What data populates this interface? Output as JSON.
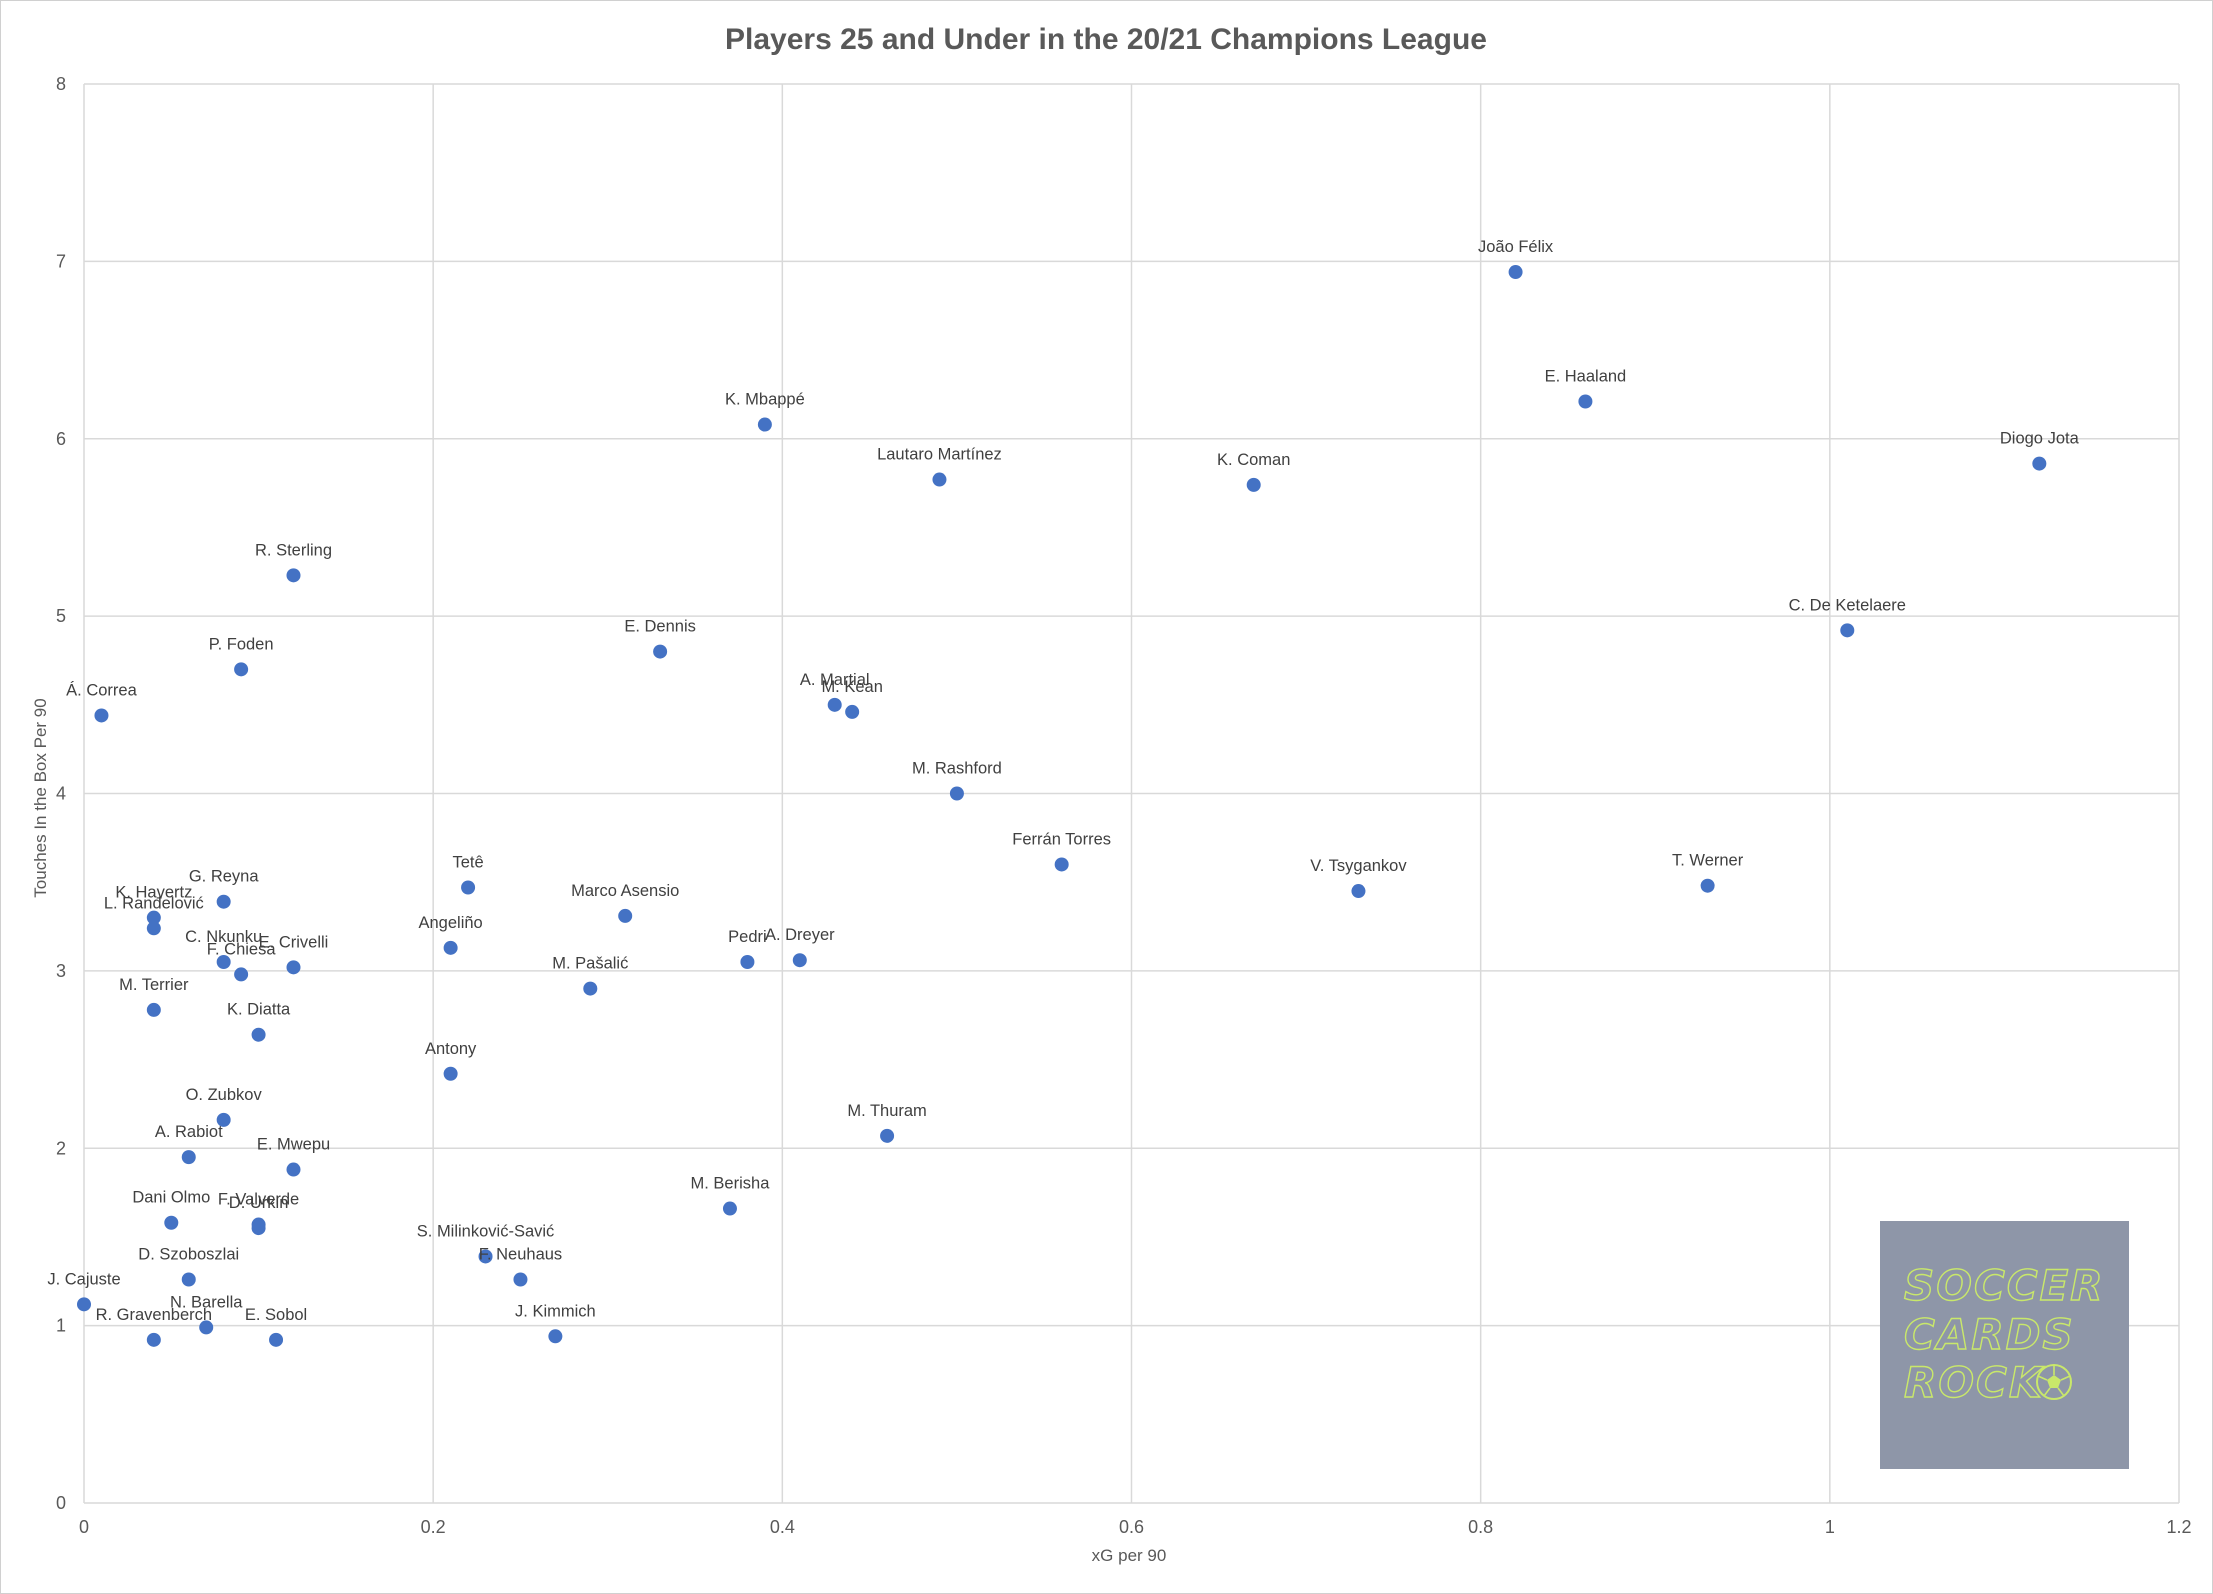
{
  "colors": {
    "marker": "#4472c4",
    "grid": "#d9d9d9",
    "text": "#595959",
    "logo_bg": "#8e96a8",
    "logo_text": "#c9e86a"
  },
  "logo": {
    "lines": [
      "SOCCER",
      "CARDS",
      "ROCK"
    ],
    "icon": "soccer-ball-icon"
  },
  "chart_data": {
    "type": "scatter",
    "title": "Players 25 and Under in the 20/21 Champions League",
    "xlabel": "xG per 90",
    "ylabel": "Touches In the Box Per 90",
    "xlim": [
      0,
      1.2
    ],
    "ylim": [
      0,
      8
    ],
    "xticks": [
      "0",
      "0.2",
      "0.4",
      "0.6",
      "0.8",
      "1",
      "1.2"
    ],
    "yticks": [
      "0",
      "1",
      "2",
      "3",
      "4",
      "5",
      "6",
      "7",
      "8"
    ],
    "grid": true,
    "points": [
      {
        "label": "João Félix",
        "x": 0.82,
        "y": 6.94
      },
      {
        "label": "E. Haaland",
        "x": 0.86,
        "y": 6.21
      },
      {
        "label": "Diogo Jota",
        "x": 1.12,
        "y": 5.86
      },
      {
        "label": "K. Mbappé",
        "x": 0.39,
        "y": 6.08
      },
      {
        "label": "Lautaro Martínez",
        "x": 0.49,
        "y": 5.77
      },
      {
        "label": "K. Coman",
        "x": 0.67,
        "y": 5.74
      },
      {
        "label": "R. Sterling",
        "x": 0.12,
        "y": 5.23
      },
      {
        "label": "C. De Ketelaere",
        "x": 1.01,
        "y": 4.92
      },
      {
        "label": "E. Dennis",
        "x": 0.33,
        "y": 4.8
      },
      {
        "label": "P. Foden",
        "x": 0.09,
        "y": 4.7
      },
      {
        "label": "Á. Correa",
        "x": 0.01,
        "y": 4.44
      },
      {
        "label": "A. Martial",
        "x": 0.43,
        "y": 4.5
      },
      {
        "label": "M. Kean",
        "x": 0.44,
        "y": 4.46
      },
      {
        "label": "M. Rashford",
        "x": 0.5,
        "y": 4.0
      },
      {
        "label": "Ferrán Torres",
        "x": 0.56,
        "y": 3.6
      },
      {
        "label": "V. Tsygankov",
        "x": 0.73,
        "y": 3.45
      },
      {
        "label": "T. Werner",
        "x": 0.93,
        "y": 3.48
      },
      {
        "label": "Tetê",
        "x": 0.22,
        "y": 3.47
      },
      {
        "label": "G. Reyna",
        "x": 0.08,
        "y": 3.39
      },
      {
        "label": "K. Havertz",
        "x": 0.04,
        "y": 3.3
      },
      {
        "label": "L. Ranđelović",
        "x": 0.04,
        "y": 3.24
      },
      {
        "label": "Marco Asensio",
        "x": 0.31,
        "y": 3.31
      },
      {
        "label": "Angeliño",
        "x": 0.21,
        "y": 3.13
      },
      {
        "label": "C. Nkunku",
        "x": 0.08,
        "y": 3.05
      },
      {
        "label": "F. Chiesa",
        "x": 0.09,
        "y": 2.98
      },
      {
        "label": "E. Crivelli",
        "x": 0.12,
        "y": 3.02
      },
      {
        "label": "Pedri",
        "x": 0.38,
        "y": 3.05
      },
      {
        "label": "A. Dreyer",
        "x": 0.41,
        "y": 3.06
      },
      {
        "label": "M. Pašalić",
        "x": 0.29,
        "y": 2.9
      },
      {
        "label": "M. Terrier",
        "x": 0.04,
        "y": 2.78
      },
      {
        "label": "K. Diatta",
        "x": 0.1,
        "y": 2.64
      },
      {
        "label": "Antony",
        "x": 0.21,
        "y": 2.42
      },
      {
        "label": "O. Zubkov",
        "x": 0.08,
        "y": 2.16
      },
      {
        "label": "M. Thuram",
        "x": 0.46,
        "y": 2.07
      },
      {
        "label": "A. Rabiot",
        "x": 0.06,
        "y": 1.95
      },
      {
        "label": "E. Mwepu",
        "x": 0.12,
        "y": 1.88
      },
      {
        "label": "M. Berisha",
        "x": 0.37,
        "y": 1.66
      },
      {
        "label": "Dani Olmo",
        "x": 0.05,
        "y": 1.58
      },
      {
        "label": "F. Valverde",
        "x": 0.1,
        "y": 1.57
      },
      {
        "label": "D. Urkin",
        "x": 0.1,
        "y": 1.55
      },
      {
        "label": "S. Milinković-Savić",
        "x": 0.23,
        "y": 1.39
      },
      {
        "label": "F. Neuhaus",
        "x": 0.25,
        "y": 1.26
      },
      {
        "label": "D. Szoboszlai",
        "x": 0.06,
        "y": 1.26
      },
      {
        "label": "J. Cajuste",
        "x": 0.0,
        "y": 1.12
      },
      {
        "label": "N. Barella",
        "x": 0.07,
        "y": 0.99
      },
      {
        "label": "R. Gravenberch",
        "x": 0.04,
        "y": 0.92
      },
      {
        "label": "E. Sobol",
        "x": 0.11,
        "y": 0.92
      },
      {
        "label": "J. Kimmich",
        "x": 0.27,
        "y": 0.94
      }
    ]
  }
}
